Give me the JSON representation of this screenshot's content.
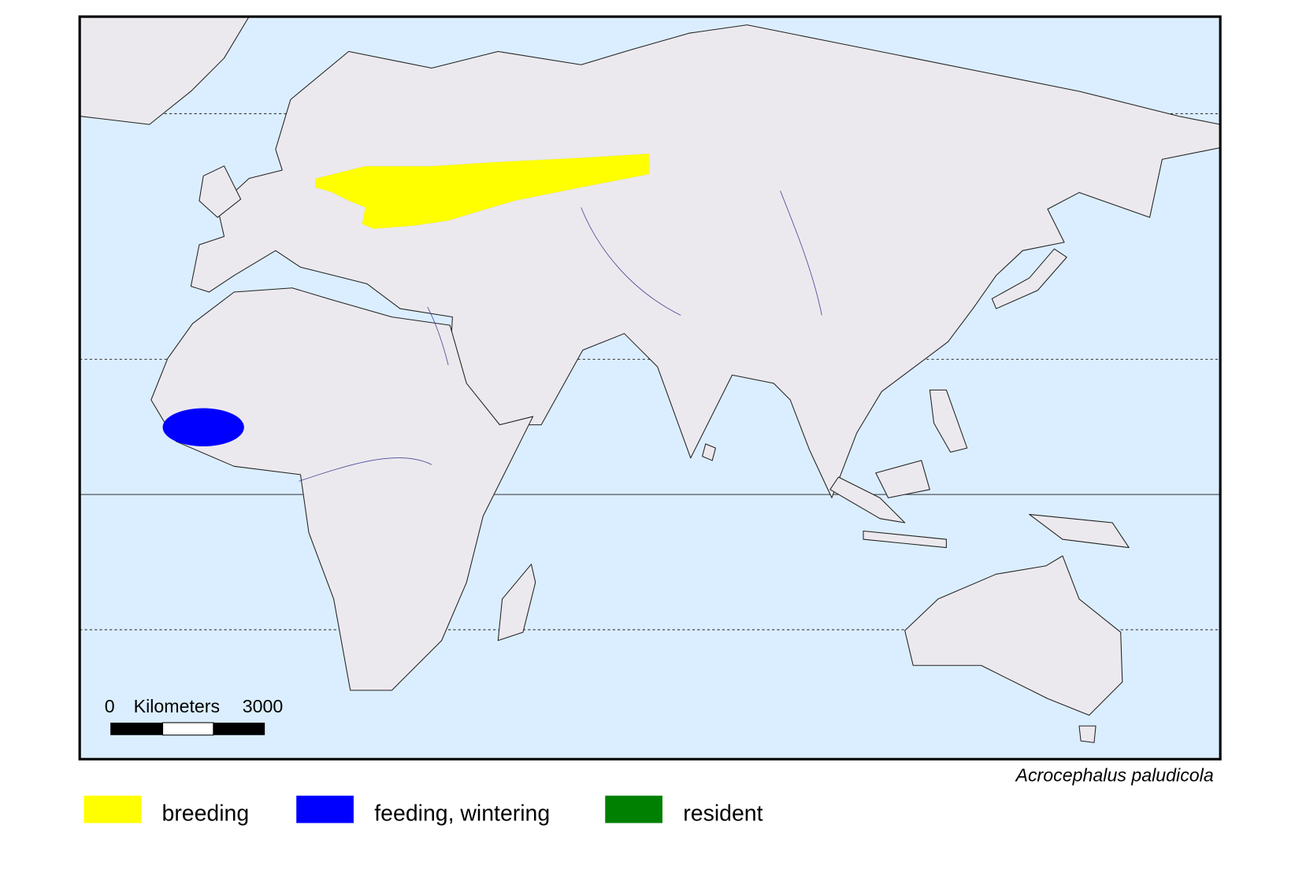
{
  "species": "Acrocephalus paludicola",
  "scale": {
    "start": "0",
    "unit": "Kilometers",
    "end": "3000"
  },
  "legend": [
    {
      "label": "breeding",
      "color": "#ffff00"
    },
    {
      "label": "feeding, wintering",
      "color": "#0000ff"
    },
    {
      "label": "resident",
      "color": "#008000"
    }
  ]
}
